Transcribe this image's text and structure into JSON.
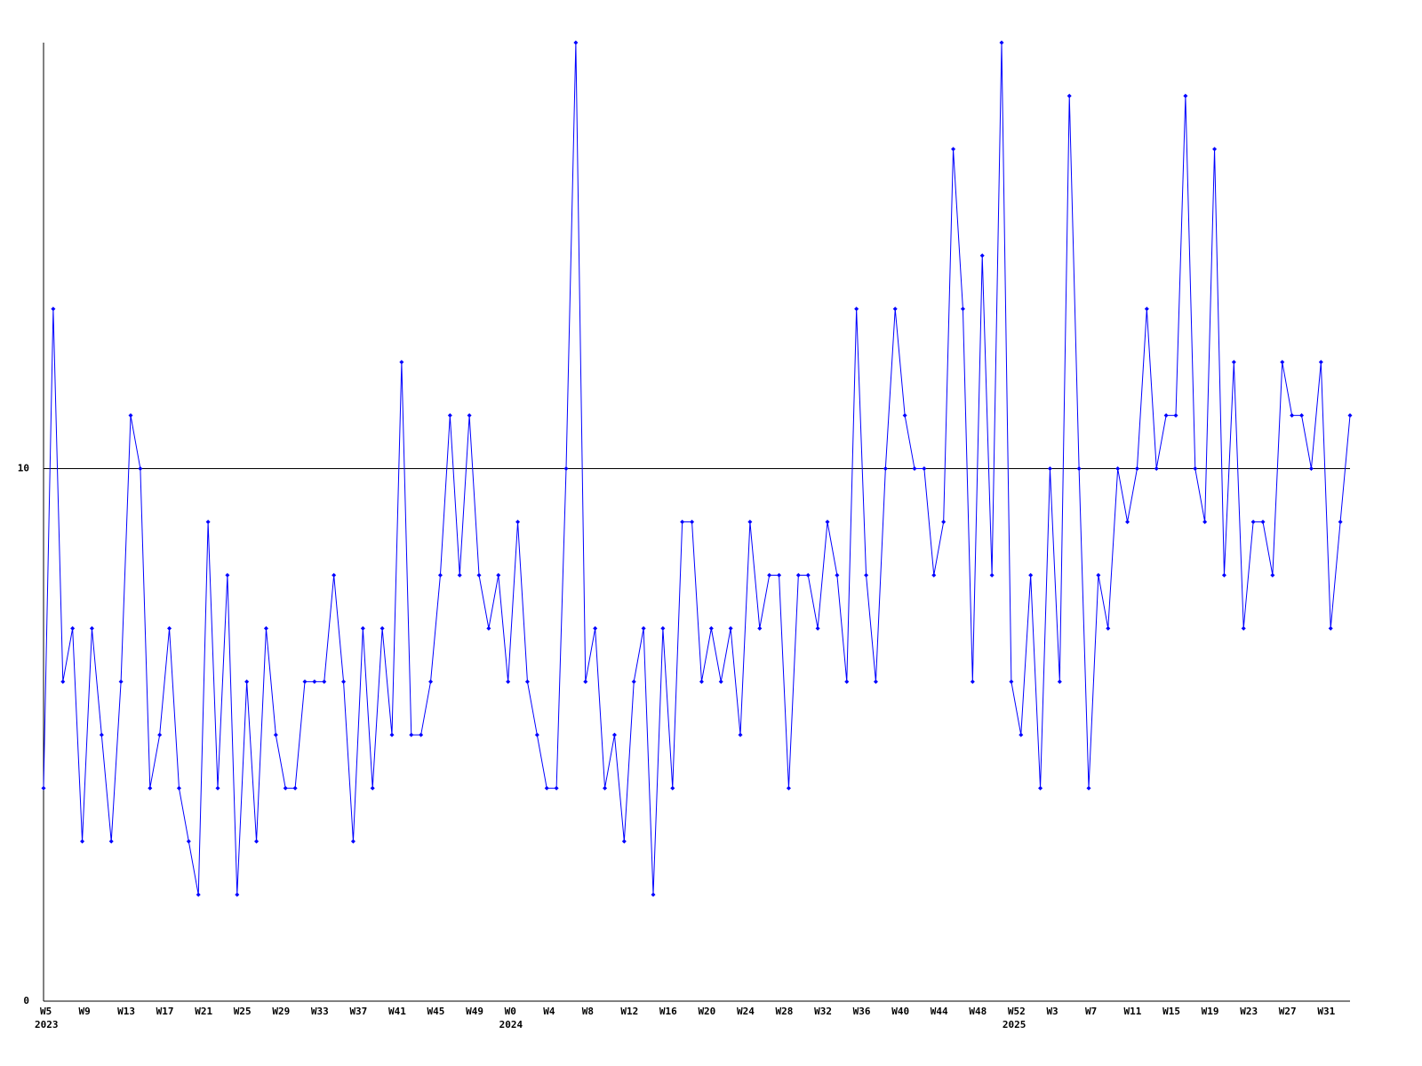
{
  "chart_data": {
    "type": "line",
    "categories": [
      "W5",
      null,
      null,
      null,
      "W9",
      null,
      null,
      null,
      "W13",
      null,
      null,
      null,
      "W17",
      null,
      null,
      null,
      "W21",
      null,
      null,
      null,
      "W25",
      null,
      null,
      null,
      "W29",
      null,
      null,
      null,
      "W33",
      null,
      null,
      null,
      "W37",
      null,
      null,
      null,
      "W41",
      null,
      null,
      null,
      "W45",
      null,
      null,
      null,
      "W49",
      null,
      null,
      null,
      "W0",
      null,
      null,
      null,
      "W4",
      null,
      null,
      null,
      "W8",
      null,
      null,
      null,
      "W12",
      null,
      null,
      null,
      "W16",
      null,
      null,
      null,
      "W20",
      null,
      null,
      null,
      "W24",
      null,
      null,
      null,
      "W28",
      null,
      null,
      null,
      "W32",
      null,
      null,
      null,
      "W36",
      null,
      null,
      null,
      "W40",
      null,
      null,
      null,
      "W44",
      null,
      null,
      null,
      "W48",
      null,
      null,
      null,
      "W52",
      null,
      null,
      null,
      "W3",
      null,
      null,
      null,
      "W7",
      null,
      null,
      null,
      "W11",
      null,
      null,
      null,
      "W15",
      null,
      null,
      null,
      "W19",
      null,
      null,
      null,
      "W23",
      null,
      null,
      null,
      "W27",
      null,
      null,
      null,
      "W31",
      null,
      null,
      null
    ],
    "year_labels": [
      {
        "index": 0,
        "label": "2023"
      },
      {
        "index": 48,
        "label": "2024"
      },
      {
        "index": 100,
        "label": "2025"
      }
    ],
    "series": [
      {
        "color": "#0000ff",
        "values": [
          4,
          13,
          6,
          7,
          3,
          7,
          5,
          3,
          6,
          11,
          10,
          4,
          5,
          7,
          4,
          3,
          2,
          9,
          4,
          8,
          2,
          6,
          3,
          7,
          5,
          4,
          4,
          6,
          6,
          6,
          8,
          6,
          3,
          7,
          4,
          7,
          5,
          12,
          5,
          5,
          6,
          8,
          11,
          8,
          11,
          8,
          7,
          8,
          6,
          9,
          6,
          5,
          4,
          4,
          10,
          18,
          6,
          7,
          4,
          5,
          3,
          6,
          7,
          2,
          7,
          4,
          9,
          9,
          6,
          7,
          6,
          7,
          5,
          9,
          7,
          8,
          8,
          4,
          8,
          8,
          7,
          9,
          8,
          6,
          13,
          8,
          6,
          10,
          13,
          11,
          10,
          10,
          8,
          9,
          16,
          13,
          6,
          14,
          8,
          18,
          6,
          5,
          8,
          4,
          10,
          6,
          17,
          10,
          4,
          8,
          7,
          10,
          9,
          10,
          13,
          10,
          11,
          11,
          17,
          10,
          9,
          16,
          8,
          12,
          7,
          9,
          9,
          8,
          12,
          11,
          11,
          10,
          12,
          7,
          9,
          11
        ]
      }
    ],
    "ylim": [
      0,
      18
    ],
    "yticks": [
      0,
      10
    ],
    "grid": true
  }
}
